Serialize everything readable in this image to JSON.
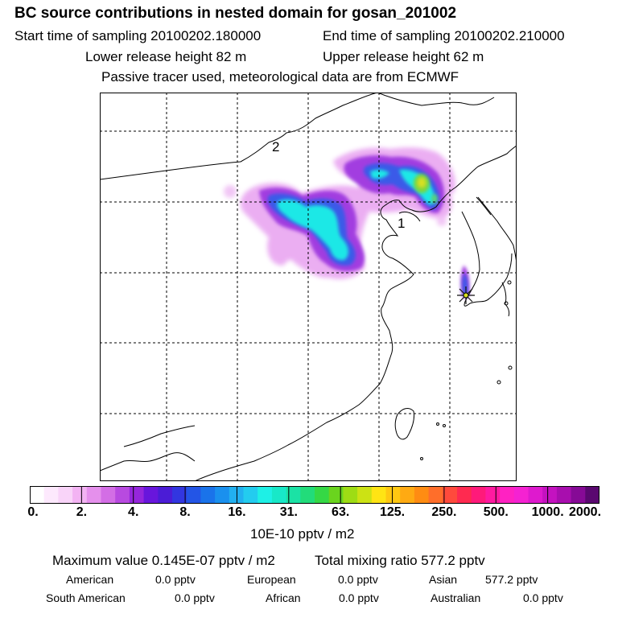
{
  "title": "BC  source contributions in nested domain for gosan_201002",
  "start_label": "Start time of sampling 20100202.180000",
  "end_label": "End time of sampling 20100202.210000",
  "lower_release": "Lower release height   82 m",
  "upper_release": "Upper release height   62 m",
  "tracer_note": "Passive tracer used, meteorological data are from ECMWF",
  "map": {
    "labels": [
      "2",
      "1"
    ],
    "receptor_icon": "star-marker-icon"
  },
  "colorbar": {
    "colors": [
      "#ffffff",
      "#fde9fd",
      "#f9d4f9",
      "#f3b3f3",
      "#e590ec",
      "#d36ee5",
      "#b84ae0",
      "#9526dc",
      "#6816dc",
      "#4b1cd6",
      "#3236e0",
      "#2355e6",
      "#1a73ea",
      "#1a90ee",
      "#22b0f0",
      "#23ccef",
      "#1ef0e6",
      "#18e8c8",
      "#1be2a5",
      "#22dc7a",
      "#35d845",
      "#6ad41e",
      "#9edc14",
      "#cce214",
      "#ffe414",
      "#ffc812",
      "#ffaa12",
      "#ff8c12",
      "#ff6e2a",
      "#ff4a3c",
      "#ff2a50",
      "#ff1a7a",
      "#ff1aa0",
      "#ff22c2",
      "#f522d2",
      "#de1ace",
      "#c412c0",
      "#a80eae",
      "#860a96",
      "#5a0870"
    ],
    "tick_labels": [
      "0.",
      "2.",
      "4.",
      "8.",
      "16.",
      "31.",
      "63.",
      "125.",
      "250.",
      "500.",
      "1000.",
      "2000."
    ],
    "units": "10E-10 pptv / m2"
  },
  "stats": {
    "max_value": "Maximum value  0.145E-07 pptv / m2",
    "total_mixing": "Total mixing ratio     577.2 pptv",
    "american_label": "American",
    "american_value": "0.0 pptv",
    "european_label": "European",
    "european_value": "0.0 pptv",
    "asian_label": "Asian",
    "asian_value": "577.2 pptv",
    "south_american_label": "South American",
    "south_american_value": "0.0 pptv",
    "african_label": "African",
    "african_value": "0.0 pptv",
    "australian_label": "Australian",
    "australian_value": "0.0 pptv"
  }
}
